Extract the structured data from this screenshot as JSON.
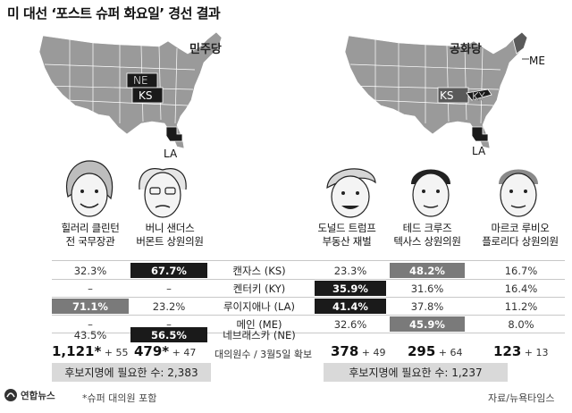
{
  "title": "미 대선 ‘포스트 슈퍼 화요일’ 경선 결과",
  "dem": {
    "party": "민주당",
    "states_on_map": [
      "NE",
      "KS",
      "LA"
    ],
    "candidates": [
      {
        "line1": "힐러리 클린턴",
        "line2": "전 국무장관"
      },
      {
        "line1": "버니 샌더스",
        "line2": "버몬트 상원의원"
      }
    ],
    "delegates": [
      {
        "count": "1,121*",
        "gain": " + 55"
      },
      {
        "count": "479*",
        "gain": " + 47"
      }
    ],
    "need": "후보지명에 필요한 수: 2,383"
  },
  "rep": {
    "party": "공화당",
    "states_on_map": [
      "KS",
      "KY",
      "LA",
      "ME"
    ],
    "candidates": [
      {
        "line1": "도널드 트럼프",
        "line2": "부동산 재벌"
      },
      {
        "line1": "테드 크루즈",
        "line2": "텍사스 상원의원"
      },
      {
        "line1": "마르코 루비오",
        "line2": "플로리다 상원의원"
      }
    ],
    "delegates": [
      {
        "count": "378",
        "gain": " + 49"
      },
      {
        "count": "295",
        "gain": " + 64"
      },
      {
        "count": "123",
        "gain": " + 13"
      }
    ],
    "need": "후보지명에 필요한 수: 1,237"
  },
  "states": [
    "캔자스 (KS)",
    "켄터키 (KY)",
    "루이지애나 (LA)",
    "메인 (ME)",
    "네브래스카 (NE)"
  ],
  "results": {
    "clinton": [
      "32.3%",
      "–",
      "71.1%",
      "–",
      "43.5%"
    ],
    "sanders": [
      "67.7%",
      "–",
      "23.2%",
      "–",
      "56.5%"
    ],
    "trump": [
      "23.3%",
      "35.9%",
      "41.4%",
      "32.6%",
      "–"
    ],
    "cruz": [
      "48.2%",
      "31.6%",
      "37.8%",
      "45.9%",
      "–"
    ],
    "rubio": [
      "16.7%",
      "16.4%",
      "11.2%",
      "8.0%",
      "–"
    ]
  },
  "delegate_caption": "대의원수 / 3월5일 확보",
  "footnote": "*슈퍼 대의원 포함",
  "source": "자료/뉴욕타임스",
  "logo": "연합뉴스",
  "colors": {
    "black_win": "#1a1a1a",
    "gray_win": "#7a7a7a",
    "map": "#9a9a9a",
    "need_box": "#d9d9d9"
  }
}
